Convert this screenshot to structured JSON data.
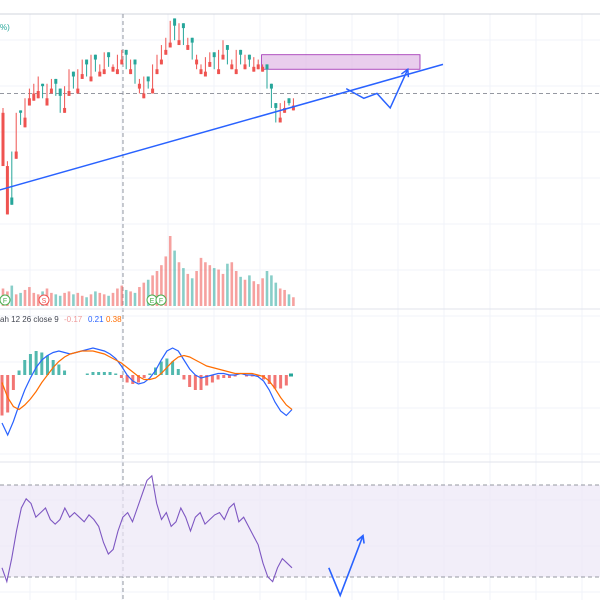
{
  "chart_data": {
    "type": "candlestick",
    "colors": {
      "up": "#26a69a",
      "down": "#ef5350",
      "macd_line": "#2962ff",
      "signal_line": "#ff6d00",
      "rsi_line": "#7e57c2",
      "rsi_band": "#ede7f6",
      "trendline": "#2962ff",
      "zone_fill": "#e1bee7",
      "zone_stroke": "#9c27b0",
      "grid": "#f0f3fa"
    },
    "grid": true,
    "header_fragment": "%)",
    "price": {
      "ylim": [
        0,
        100
      ],
      "candles": [
        [
          60,
          62,
          40,
          38
        ],
        [
          38,
          40,
          20,
          18
        ],
        [
          22,
          44,
          24,
          25
        ],
        [
          44,
          60,
          42,
          41
        ],
        [
          60,
          58,
          55,
          61
        ],
        [
          58,
          66,
          64,
          54
        ],
        [
          66,
          70,
          68,
          63
        ],
        [
          68,
          72,
          69,
          65
        ],
        [
          69,
          75,
          71,
          66
        ],
        [
          71,
          70,
          66,
          72
        ],
        [
          66,
          72,
          70,
          63
        ],
        [
          70,
          74,
          72,
          68
        ],
        [
          72,
          71,
          67,
          74
        ],
        [
          67,
          65,
          60,
          70
        ],
        [
          62,
          71,
          69,
          60
        ],
        [
          69,
          78,
          75,
          67
        ],
        [
          75,
          74,
          70,
          77
        ],
        [
          70,
          78,
          76,
          68
        ],
        [
          76,
          82,
          80,
          74
        ],
        [
          80,
          79,
          75,
          82
        ],
        [
          75,
          84,
          82,
          73
        ],
        [
          82,
          81,
          77,
          84
        ],
        [
          77,
          80,
          78,
          75
        ],
        [
          78,
          85,
          83,
          76
        ],
        [
          83,
          82,
          79,
          85
        ],
        [
          79,
          80,
          78,
          77
        ],
        [
          78,
          84,
          82,
          76
        ],
        [
          82,
          86,
          84,
          80
        ],
        [
          84,
          83,
          78,
          86
        ],
        [
          78,
          82,
          80,
          76
        ],
        [
          80,
          79,
          72,
          82
        ],
        [
          72,
          74,
          68,
          70
        ],
        [
          68,
          75,
          73,
          66
        ],
        [
          73,
          72,
          70,
          75
        ],
        [
          70,
          80,
          78,
          68
        ],
        [
          78,
          84,
          82,
          76
        ],
        [
          82,
          88,
          86,
          80
        ],
        [
          86,
          91,
          89,
          84
        ],
        [
          89,
          98,
          96,
          87
        ],
        [
          96,
          94,
          90,
          99
        ],
        [
          90,
          97,
          95,
          88
        ],
        [
          95,
          93,
          88,
          97
        ],
        [
          88,
          91,
          89,
          86
        ],
        [
          89,
          87,
          82,
          91
        ],
        [
          82,
          84,
          78,
          80
        ],
        [
          78,
          80,
          77,
          76
        ],
        [
          77,
          83,
          81,
          75
        ],
        [
          81,
          85,
          83,
          79
        ],
        [
          83,
          82,
          78,
          85
        ],
        [
          78,
          86,
          84,
          76
        ],
        [
          84,
          90,
          86,
          82
        ],
        [
          86,
          84,
          80,
          88
        ],
        [
          80,
          82,
          78,
          78
        ],
        [
          78,
          86,
          84,
          76
        ],
        [
          84,
          83,
          80,
          86
        ],
        [
          80,
          84,
          82,
          78
        ],
        [
          82,
          81,
          79,
          84
        ],
        [
          79,
          83,
          80,
          77
        ],
        [
          80,
          82,
          79,
          78
        ],
        [
          79,
          80,
          78,
          77
        ],
        [
          78,
          79,
          70,
          80
        ],
        [
          70,
          68,
          62,
          72
        ],
        [
          62,
          60,
          56,
          64
        ],
        [
          58,
          64,
          62,
          56
        ],
        [
          62,
          65,
          64,
          60
        ],
        [
          64,
          63,
          63,
          66
        ],
        [
          63,
          66,
          65,
          61
        ]
      ],
      "resistance_zone": {
        "from_index": 59,
        "to_index": 95,
        "low": 78,
        "high": 84
      },
      "trendline": {
        "from": [
          -1,
          28
        ],
        "to": [
          100,
          80
        ]
      },
      "arrow": [
        [
          78,
          70
        ],
        [
          82,
          66
        ],
        [
          85,
          68
        ],
        [
          88,
          62
        ],
        [
          92,
          78
        ]
      ],
      "horizontal_level": 68
    },
    "volume": {
      "labels": [
        "F",
        "S",
        "E",
        "F"
      ],
      "values": [
        12,
        10,
        14,
        8,
        9,
        11,
        13,
        9,
        8,
        10,
        12,
        9,
        8,
        7,
        9,
        10,
        8,
        9,
        7,
        6,
        8,
        10,
        9,
        8,
        7,
        9,
        12,
        14,
        11,
        10,
        9,
        13,
        16,
        18,
        21,
        24,
        28,
        34,
        48,
        38,
        30,
        26,
        22,
        19,
        24,
        33,
        30,
        28,
        26,
        25,
        22,
        29,
        30,
        24,
        20,
        18,
        21,
        17,
        15,
        19,
        24,
        21,
        16,
        12,
        11,
        8,
        6
      ]
    },
    "macd": {
      "settings_fragment": "ah 12 26 close 9",
      "values": [
        "-0.17",
        "0.21",
        "0.38"
      ],
      "line": [
        -3.2,
        -4.0,
        -3.1,
        -2.0,
        -1.0,
        -0.2,
        0.5,
        1.0,
        1.3,
        1.5,
        1.6,
        1.5,
        1.4,
        1.5,
        1.6,
        1.7,
        1.8,
        1.7,
        1.6,
        1.4,
        1.1,
        0.6,
        0.0,
        -0.4,
        -0.6,
        -0.5,
        -0.2,
        0.3,
        1.0,
        1.6,
        1.8,
        1.6,
        1.0,
        0.4,
        0.0,
        -0.2,
        -0.1,
        0.0,
        0.1,
        0.1,
        0.0,
        0.0,
        0.1,
        0.0,
        0.0,
        -0.1,
        -0.4,
        -1.0,
        -1.8,
        -2.4,
        -2.7,
        -2.3
      ],
      "signal": [
        -0.5,
        -1.5,
        -2.1,
        -2.3,
        -2.0,
        -1.6,
        -1.1,
        -0.5,
        0.0,
        0.5,
        0.9,
        1.2,
        1.4,
        1.5,
        1.6,
        1.6,
        1.6,
        1.5,
        1.4,
        1.2,
        1.0,
        0.8,
        0.5,
        0.2,
        -0.1,
        -0.3,
        -0.3,
        -0.2,
        0.1,
        0.5,
        0.9,
        1.2,
        1.3,
        1.2,
        1.0,
        0.8,
        0.6,
        0.5,
        0.4,
        0.3,
        0.2,
        0.1,
        0.1,
        0.1,
        0.1,
        0.0,
        -0.1,
        -0.4,
        -0.9,
        -1.5,
        -2.0,
        -2.3
      ],
      "ylim": [
        -5,
        3
      ]
    },
    "rsi": {
      "band": [
        30,
        70
      ],
      "ylim": [
        20,
        80
      ],
      "values": [
        34,
        28,
        38,
        50,
        60,
        64,
        62,
        56,
        58,
        60,
        55,
        53,
        55,
        60,
        56,
        58,
        56,
        54,
        57,
        55,
        52,
        45,
        40,
        42,
        50,
        56,
        58,
        54,
        60,
        66,
        72,
        74,
        62,
        55,
        58,
        52,
        54,
        60,
        56,
        50,
        56,
        58,
        53,
        55,
        57,
        58,
        55,
        60,
        62,
        54,
        56,
        52,
        48,
        44,
        36,
        30,
        28,
        34,
        38,
        36,
        34
      ],
      "arrow": [
        [
          86,
          34
        ],
        [
          89,
          22
        ],
        [
          95,
          48
        ]
      ]
    }
  }
}
